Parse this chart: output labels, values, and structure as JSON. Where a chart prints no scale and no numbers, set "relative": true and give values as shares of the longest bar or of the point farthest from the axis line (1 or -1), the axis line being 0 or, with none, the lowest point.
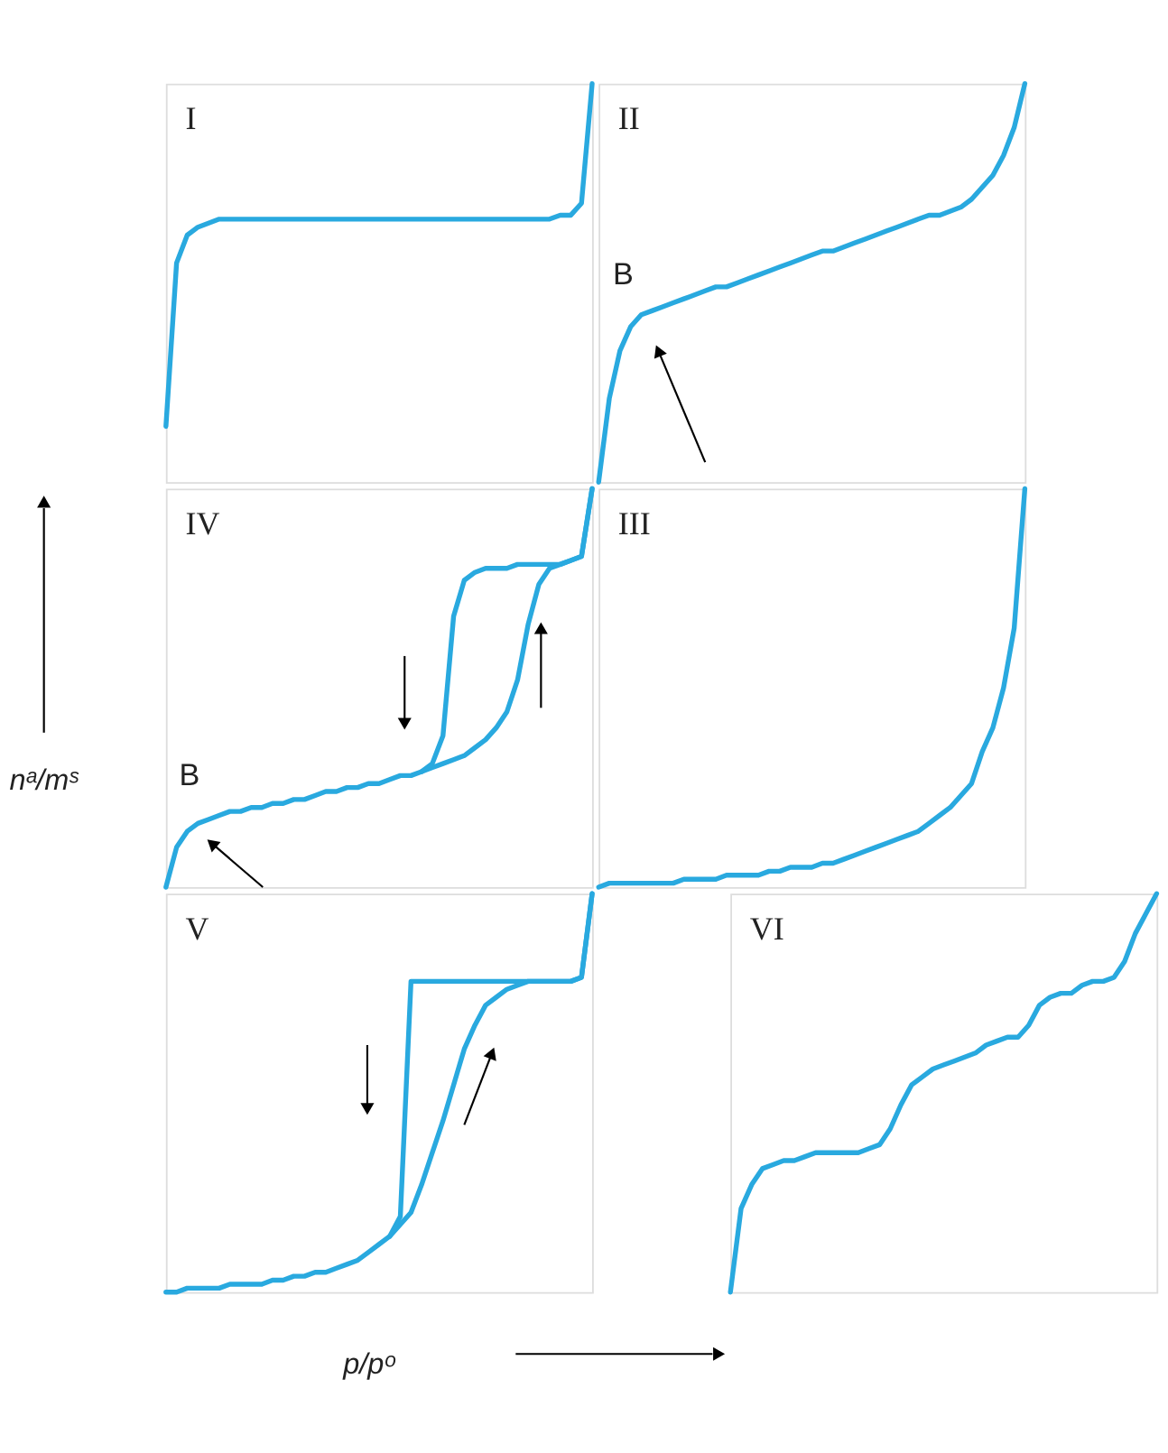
{
  "chart_data": [
    {
      "type": "line",
      "title": "I",
      "relative": true,
      "tick_labels": false,
      "categories": [
        null,
        null,
        null,
        null,
        null,
        null,
        null,
        null,
        null,
        null,
        null,
        null,
        null,
        null,
        null,
        null,
        null,
        null,
        null,
        null,
        null,
        null,
        null,
        null,
        null,
        null,
        null,
        null,
        null,
        null,
        null,
        null,
        null,
        null,
        null,
        null,
        null,
        null,
        null,
        null,
        null
      ],
      "series": [
        {
          "color": "#29a9df",
          "values": [
            0.14,
            0.55,
            0.62,
            0.64,
            0.65,
            0.66,
            0.66,
            0.66,
            0.66,
            0.66,
            0.66,
            0.66,
            0.66,
            0.66,
            0.66,
            0.66,
            0.66,
            0.66,
            0.66,
            0.66,
            0.66,
            0.66,
            0.66,
            0.66,
            0.66,
            0.66,
            0.66,
            0.66,
            0.66,
            0.66,
            0.66,
            0.66,
            0.66,
            0.66,
            0.66,
            0.66,
            0.66,
            0.67,
            0.67,
            0.7,
            1.0
          ]
        }
      ]
    },
    {
      "type": "line",
      "title": "II",
      "relative": true,
      "tick_labels": false,
      "annotations": [
        "B"
      ],
      "categories": [
        null,
        null,
        null,
        null,
        null,
        null,
        null,
        null,
        null,
        null,
        null,
        null,
        null,
        null,
        null,
        null,
        null,
        null,
        null,
        null,
        null,
        null,
        null,
        null,
        null,
        null,
        null,
        null,
        null,
        null,
        null,
        null,
        null,
        null,
        null,
        null,
        null,
        null,
        null,
        null,
        null
      ],
      "series": [
        {
          "color": "#29a9df",
          "values": [
            0,
            0.21,
            0.33,
            0.39,
            0.42,
            0.43,
            0.44,
            0.45,
            0.46,
            0.47,
            0.48,
            0.49,
            0.49,
            0.5,
            0.51,
            0.52,
            0.53,
            0.54,
            0.55,
            0.56,
            0.57,
            0.58,
            0.58,
            0.59,
            0.6,
            0.61,
            0.62,
            0.63,
            0.64,
            0.65,
            0.66,
            0.67,
            0.67,
            0.68,
            0.69,
            0.71,
            0.74,
            0.77,
            0.82,
            0.89,
            1.0
          ]
        }
      ]
    },
    {
      "type": "line",
      "title": "IV",
      "ylabel": "nᵃ/mˢ",
      "relative": true,
      "tick_labels": false,
      "annotations": [
        "B"
      ],
      "categories": [
        null,
        null,
        null,
        null,
        null,
        null,
        null,
        null,
        null,
        null,
        null,
        null,
        null,
        null,
        null,
        null,
        null,
        null,
        null,
        null,
        null,
        null,
        null,
        null,
        null,
        null,
        null,
        null,
        null,
        null,
        null,
        null,
        null,
        null,
        null,
        null,
        null,
        null,
        null,
        null,
        null
      ],
      "series": [
        {
          "color": "#29a9df",
          "values": [
            0,
            0.1,
            0.14,
            0.16,
            0.17,
            0.18,
            0.19,
            0.19,
            0.2,
            0.2,
            0.21,
            0.21,
            0.22,
            0.22,
            0.23,
            0.24,
            0.24,
            0.25,
            0.25,
            0.26,
            0.26,
            0.27,
            0.28,
            0.28,
            0.29,
            0.3,
            0.31,
            0.32,
            0.33,
            0.35,
            0.37,
            0.4,
            0.44,
            0.52,
            0.66,
            0.76,
            0.8,
            0.81,
            0.82,
            0.83,
            1.0
          ]
        },
        {
          "color": "#29a9df",
          "values": [
            null,
            null,
            null,
            null,
            null,
            null,
            null,
            null,
            null,
            null,
            null,
            null,
            null,
            null,
            null,
            null,
            null,
            null,
            null,
            null,
            null,
            null,
            null,
            null,
            0.29,
            0.31,
            0.38,
            0.68,
            0.77,
            0.79,
            0.8,
            0.8,
            0.8,
            0.81,
            0.81,
            0.81,
            0.81,
            0.81,
            0.82,
            0.83,
            1.0
          ]
        }
      ]
    },
    {
      "type": "line",
      "title": "III",
      "relative": true,
      "tick_labels": false,
      "categories": [
        null,
        null,
        null,
        null,
        null,
        null,
        null,
        null,
        null,
        null,
        null,
        null,
        null,
        null,
        null,
        null,
        null,
        null,
        null,
        null,
        null,
        null,
        null,
        null,
        null,
        null,
        null,
        null,
        null,
        null,
        null,
        null,
        null,
        null,
        null,
        null,
        null,
        null,
        null,
        null,
        null
      ],
      "series": [
        {
          "color": "#29a9df",
          "values": [
            0,
            0.01,
            0.01,
            0.01,
            0.01,
            0.01,
            0.01,
            0.01,
            0.02,
            0.02,
            0.02,
            0.02,
            0.03,
            0.03,
            0.03,
            0.03,
            0.04,
            0.04,
            0.05,
            0.05,
            0.05,
            0.06,
            0.06,
            0.07,
            0.08,
            0.09,
            0.1,
            0.11,
            0.12,
            0.13,
            0.14,
            0.16,
            0.18,
            0.2,
            0.23,
            0.26,
            0.34,
            0.4,
            0.5,
            0.65,
            1.0
          ]
        }
      ]
    },
    {
      "type": "line",
      "title": "V",
      "xlabel": "p/pᵒ",
      "relative": true,
      "tick_labels": false,
      "categories": [
        null,
        null,
        null,
        null,
        null,
        null,
        null,
        null,
        null,
        null,
        null,
        null,
        null,
        null,
        null,
        null,
        null,
        null,
        null,
        null,
        null,
        null,
        null,
        null,
        null,
        null,
        null,
        null,
        null,
        null,
        null,
        null,
        null,
        null,
        null,
        null,
        null,
        null,
        null,
        null,
        null
      ],
      "series": [
        {
          "color": "#29a9df",
          "values": [
            0,
            0,
            0.01,
            0.01,
            0.01,
            0.01,
            0.02,
            0.02,
            0.02,
            0.02,
            0.03,
            0.03,
            0.04,
            0.04,
            0.05,
            0.05,
            0.06,
            0.07,
            0.08,
            0.1,
            0.12,
            0.14,
            0.17,
            0.2,
            0.27,
            0.35,
            0.43,
            0.52,
            0.61,
            0.67,
            0.72,
            0.74,
            0.76,
            0.77,
            0.78,
            0.78,
            0.78,
            0.78,
            0.78,
            0.79,
            1.0
          ]
        },
        {
          "color": "#29a9df",
          "values": [
            null,
            null,
            null,
            null,
            null,
            null,
            null,
            null,
            null,
            null,
            null,
            null,
            null,
            null,
            null,
            null,
            null,
            null,
            null,
            null,
            null,
            0.14,
            0.19,
            0.78,
            0.78,
            0.78,
            0.78,
            0.78,
            0.78,
            0.78,
            0.78,
            0.78,
            0.78,
            0.78,
            0.78,
            0.78,
            0.78,
            0.78,
            0.78,
            0.79,
            1.0
          ]
        }
      ]
    },
    {
      "type": "line",
      "title": "VI",
      "relative": true,
      "tick_labels": false,
      "categories": [
        null,
        null,
        null,
        null,
        null,
        null,
        null,
        null,
        null,
        null,
        null,
        null,
        null,
        null,
        null,
        null,
        null,
        null,
        null,
        null,
        null,
        null,
        null,
        null,
        null,
        null,
        null,
        null,
        null,
        null,
        null,
        null,
        null,
        null,
        null,
        null,
        null,
        null,
        null,
        null,
        null
      ],
      "series": [
        {
          "color": "#29a9df",
          "values": [
            0,
            0.21,
            0.27,
            0.31,
            0.32,
            0.33,
            0.33,
            0.34,
            0.35,
            0.35,
            0.35,
            0.35,
            0.35,
            0.36,
            0.37,
            0.41,
            0.47,
            0.52,
            0.54,
            0.56,
            0.57,
            0.58,
            0.59,
            0.6,
            0.62,
            0.63,
            0.64,
            0.64,
            0.67,
            0.72,
            0.74,
            0.75,
            0.75,
            0.77,
            0.78,
            0.78,
            0.79,
            0.83,
            0.9,
            0.95,
            1.0
          ]
        }
      ]
    }
  ]
}
